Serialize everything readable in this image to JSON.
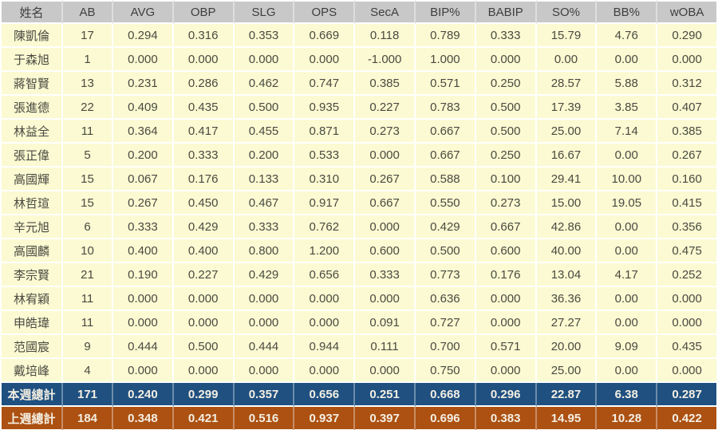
{
  "colors": {
    "header_bg": "#c8c8c8",
    "header_text": "#3e3e3e",
    "row_bg": "#fbfad2",
    "row_text": "#4a4a42",
    "this_week_bg": "#1f5080",
    "last_week_bg": "#ac5112",
    "totals_text": "#f4efe3",
    "grid": "#ffffff"
  },
  "chart_data": {
    "type": "table",
    "title": "",
    "columns": [
      "姓名",
      "AB",
      "AVG",
      "OBP",
      "SLG",
      "OPS",
      "SecA",
      "BIP%",
      "BABIP",
      "SO%",
      "BB%",
      "wOBA"
    ],
    "rows": [
      {
        "name": "陳凱倫",
        "values": [
          "17",
          "0.294",
          "0.316",
          "0.353",
          "0.669",
          "0.118",
          "0.789",
          "0.333",
          "15.79",
          "4.76",
          "0.290"
        ]
      },
      {
        "name": "于森旭",
        "values": [
          "1",
          "0.000",
          "0.000",
          "0.000",
          "0.000",
          "-1.000",
          "1.000",
          "0.000",
          "0.00",
          "0.00",
          "0.000"
        ]
      },
      {
        "name": "蔣智賢",
        "values": [
          "13",
          "0.231",
          "0.286",
          "0.462",
          "0.747",
          "0.385",
          "0.571",
          "0.250",
          "28.57",
          "5.88",
          "0.312"
        ]
      },
      {
        "name": "張進德",
        "values": [
          "22",
          "0.409",
          "0.435",
          "0.500",
          "0.935",
          "0.227",
          "0.783",
          "0.500",
          "17.39",
          "3.85",
          "0.407"
        ]
      },
      {
        "name": "林益全",
        "values": [
          "11",
          "0.364",
          "0.417",
          "0.455",
          "0.871",
          "0.273",
          "0.667",
          "0.500",
          "25.00",
          "7.14",
          "0.385"
        ]
      },
      {
        "name": "張正偉",
        "values": [
          "5",
          "0.200",
          "0.333",
          "0.200",
          "0.533",
          "0.000",
          "0.667",
          "0.250",
          "16.67",
          "0.00",
          "0.267"
        ]
      },
      {
        "name": "高國輝",
        "values": [
          "15",
          "0.067",
          "0.176",
          "0.133",
          "0.310",
          "0.267",
          "0.588",
          "0.100",
          "29.41",
          "10.00",
          "0.160"
        ]
      },
      {
        "name": "林哲瑄",
        "values": [
          "15",
          "0.267",
          "0.450",
          "0.467",
          "0.917",
          "0.667",
          "0.550",
          "0.273",
          "15.00",
          "19.05",
          "0.415"
        ]
      },
      {
        "name": "辛元旭",
        "values": [
          "6",
          "0.333",
          "0.429",
          "0.333",
          "0.762",
          "0.000",
          "0.429",
          "0.667",
          "42.86",
          "0.00",
          "0.356"
        ]
      },
      {
        "name": "高國麟",
        "values": [
          "10",
          "0.400",
          "0.400",
          "0.800",
          "1.200",
          "0.600",
          "0.500",
          "0.600",
          "40.00",
          "0.00",
          "0.475"
        ]
      },
      {
        "name": "李宗賢",
        "values": [
          "21",
          "0.190",
          "0.227",
          "0.429",
          "0.656",
          "0.333",
          "0.773",
          "0.176",
          "13.04",
          "4.17",
          "0.252"
        ]
      },
      {
        "name": "林宥穎",
        "values": [
          "11",
          "0.000",
          "0.000",
          "0.000",
          "0.000",
          "0.000",
          "0.636",
          "0.000",
          "36.36",
          "0.00",
          "0.000"
        ]
      },
      {
        "name": "申皓瑋",
        "values": [
          "11",
          "0.000",
          "0.000",
          "0.000",
          "0.000",
          "0.091",
          "0.727",
          "0.000",
          "27.27",
          "0.00",
          "0.000"
        ]
      },
      {
        "name": "范國宸",
        "values": [
          "9",
          "0.444",
          "0.500",
          "0.444",
          "0.944",
          "0.111",
          "0.700",
          "0.571",
          "20.00",
          "9.09",
          "0.435"
        ]
      },
      {
        "name": "戴培峰",
        "values": [
          "4",
          "0.000",
          "0.000",
          "0.000",
          "0.000",
          "0.000",
          "0.750",
          "0.000",
          "25.00",
          "0.00",
          "0.000"
        ]
      }
    ],
    "summary_rows": [
      {
        "name": "本週總計",
        "values": [
          "171",
          "0.240",
          "0.299",
          "0.357",
          "0.656",
          "0.251",
          "0.668",
          "0.296",
          "22.87",
          "6.38",
          "0.287"
        ],
        "bg": "#1f5080"
      },
      {
        "name": "上週總計",
        "values": [
          "184",
          "0.348",
          "0.421",
          "0.516",
          "0.937",
          "0.397",
          "0.696",
          "0.383",
          "14.95",
          "10.28",
          "0.422"
        ],
        "bg": "#ac5112"
      }
    ],
    "layout_hints": {
      "grid": true,
      "header_position": "top",
      "name_column_align": "center",
      "value_align": "center"
    }
  }
}
